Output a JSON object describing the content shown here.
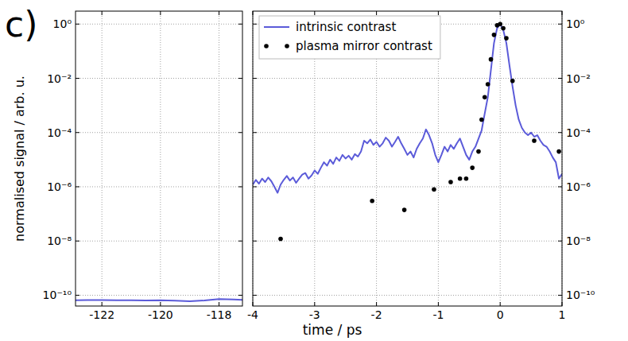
{
  "panel_label": "c)",
  "chart_data": [
    {
      "type": "line",
      "ylabel": "normalised signal / arb. u.",
      "log": "y",
      "grid": true,
      "xlim": [
        -122.9,
        -117.2
      ],
      "xticks": [
        -122,
        -120,
        -118
      ],
      "ylim": [
        4e-11,
        3
      ],
      "yticks": [
        {
          "value": 1,
          "label": "10⁰"
        },
        {
          "value": 0.01,
          "label": "10⁻²"
        },
        {
          "value": 0.0001,
          "label": "10⁻⁴"
        },
        {
          "value": 1e-06,
          "label": "10⁻⁶"
        },
        {
          "value": 1e-08,
          "label": "10⁻⁸"
        },
        {
          "value": 1e-10,
          "label": "10⁻¹⁰"
        }
      ],
      "series": [
        {
          "type": "line",
          "color": "#5b5bd9",
          "x": [
            -122.9,
            -122.5,
            -122,
            -121.5,
            -121,
            -120.5,
            -120,
            -119.5,
            -119,
            -118.5,
            -118,
            -117.5,
            -117.2
          ],
          "values": [
            6.5e-11,
            6.6e-11,
            6.6e-11,
            6.5e-11,
            6.5e-11,
            6.4e-11,
            6.5e-11,
            6.3e-11,
            6e-11,
            6.4e-11,
            7.2e-11,
            7e-11,
            6.8e-11
          ]
        }
      ]
    },
    {
      "type": "line",
      "xlabel": "time / ps",
      "log": "y",
      "grid": true,
      "legend": "upper left",
      "xlim": [
        -4,
        1
      ],
      "xticks": [
        -4,
        -3,
        -2,
        -1,
        0,
        1
      ],
      "ylim": [
        4e-11,
        3
      ],
      "yticks": [
        {
          "value": 1,
          "label": "10⁰"
        },
        {
          "value": 0.01,
          "label": "10⁻²"
        },
        {
          "value": 0.0001,
          "label": "10⁻⁴"
        },
        {
          "value": 1e-06,
          "label": "10⁻⁶"
        },
        {
          "value": 1e-08,
          "label": "10⁻⁸"
        },
        {
          "value": 1e-10,
          "label": "10⁻¹⁰"
        }
      ],
      "series": [
        {
          "name": "intrinsic contrast",
          "type": "line",
          "color": "#5b5bd9",
          "line_style": "solid",
          "x": [
            -4.0,
            -3.95,
            -3.9,
            -3.85,
            -3.8,
            -3.75,
            -3.7,
            -3.65,
            -3.6,
            -3.55,
            -3.5,
            -3.45,
            -3.4,
            -3.35,
            -3.3,
            -3.25,
            -3.2,
            -3.15,
            -3.1,
            -3.05,
            -3.0,
            -2.95,
            -2.9,
            -2.85,
            -2.8,
            -2.75,
            -2.7,
            -2.65,
            -2.6,
            -2.55,
            -2.5,
            -2.45,
            -2.4,
            -2.35,
            -2.3,
            -2.25,
            -2.2,
            -2.15,
            -2.1,
            -2.05,
            -2.0,
            -1.95,
            -1.9,
            -1.85,
            -1.8,
            -1.75,
            -1.7,
            -1.65,
            -1.6,
            -1.55,
            -1.5,
            -1.45,
            -1.4,
            -1.35,
            -1.3,
            -1.25,
            -1.2,
            -1.15,
            -1.1,
            -1.05,
            -1.0,
            -0.95,
            -0.9,
            -0.85,
            -0.8,
            -0.75,
            -0.7,
            -0.65,
            -0.6,
            -0.55,
            -0.5,
            -0.45,
            -0.4,
            -0.35,
            -0.3,
            -0.25,
            -0.2,
            -0.15,
            -0.1,
            -0.05,
            0.0,
            0.05,
            0.1,
            0.15,
            0.2,
            0.25,
            0.3,
            0.35,
            0.4,
            0.45,
            0.5,
            0.55,
            0.6,
            0.65,
            0.7,
            0.75,
            0.8,
            0.85,
            0.9,
            0.95,
            1.0
          ],
          "values": [
            1.2e-06,
            1.8e-06,
            1.3e-06,
            2e-06,
            1.5e-06,
            2.2e-06,
            1.6e-06,
            1e-06,
            6e-07,
            1.2e-06,
            1.8e-06,
            2.5e-06,
            1.7e-06,
            2.2e-06,
            1.4e-06,
            2e-06,
            2.8e-06,
            3.2e-06,
            2e-06,
            2.6e-06,
            4e-06,
            3e-06,
            5e-06,
            8e-06,
            6e-06,
            1e-05,
            7e-06,
            1.2e-05,
            9e-06,
            1.5e-05,
            1.1e-05,
            1.4e-05,
            1e-05,
            1.6e-05,
            1.3e-05,
            2e-05,
            5e-05,
            4e-05,
            5.5e-05,
            3.5e-05,
            4.5e-05,
            3e-05,
            4e-05,
            6.5e-05,
            5e-05,
            3e-05,
            4.5e-05,
            7e-05,
            4e-05,
            2.5e-05,
            1.5e-05,
            2e-05,
            1.2e-05,
            2.5e-05,
            4e-05,
            6e-05,
            0.00013,
            8e-05,
            4e-05,
            1.5e-05,
            8e-06,
            1.5e-05,
            3e-05,
            2e-05,
            3.5e-05,
            2.5e-05,
            4e-05,
            6e-05,
            3e-05,
            1.5e-05,
            1e-05,
            2e-05,
            3e-05,
            6e-05,
            0.00012,
            0.0005,
            0.002,
            0.02,
            0.2,
            0.7,
            1.0,
            0.6,
            0.2,
            0.03,
            0.005,
            0.001,
            0.0003,
            0.00015,
            0.0001,
            8e-05,
            0.0001,
            7e-05,
            8e-05,
            5e-05,
            3.5e-05,
            3e-05,
            2e-05,
            1.2e-05,
            8e-06,
            2e-06,
            3e-06
          ]
        },
        {
          "name": "plasma mirror contrast",
          "type": "scatter",
          "color": "#000000",
          "marker": "circle",
          "x": [
            -3.55,
            -2.07,
            -1.55,
            -1.07,
            -0.8,
            -0.65,
            -0.55,
            -0.45,
            -0.35,
            -0.3,
            -0.25,
            -0.2,
            -0.15,
            -0.1,
            -0.05,
            0,
            0.05,
            0.1,
            0.2,
            0.55,
            0.95
          ],
          "values": [
            1.2e-08,
            3e-07,
            1.4e-07,
            8e-07,
            1.5e-06,
            2e-06,
            2e-06,
            5e-06,
            2e-05,
            0.0003,
            0.002,
            0.006,
            0.05,
            0.4,
            0.9,
            1,
            0.7,
            0.3,
            0.008,
            5e-05,
            2e-05
          ]
        }
      ]
    }
  ]
}
